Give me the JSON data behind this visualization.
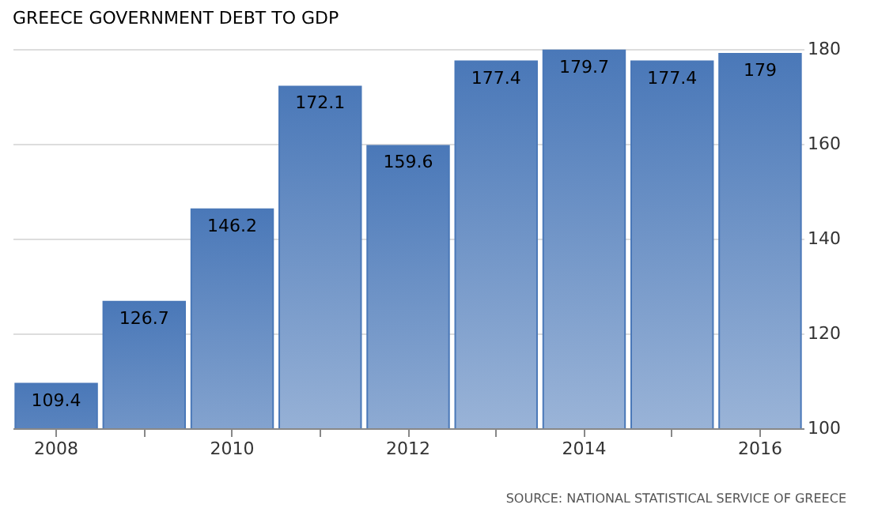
{
  "chart_data": {
    "type": "bar",
    "title": "GREECE GOVERNMENT DEBT TO GDP",
    "categories": [
      "2008",
      null,
      "2010",
      null,
      "2012",
      null,
      "2014",
      null,
      "2016"
    ],
    "values": [
      109.4,
      126.7,
      146.2,
      172.1,
      159.6,
      177.4,
      179.7,
      177.4,
      179
    ],
    "color": "#4a78b8",
    "ylim": [
      100,
      180
    ],
    "yticks": [
      100,
      120,
      140,
      160,
      180
    ],
    "grid": "y",
    "data_labels": true,
    "annotations": [
      "SOURCE: NATIONAL STATISTICAL SERVICE OF GREECE"
    ]
  }
}
